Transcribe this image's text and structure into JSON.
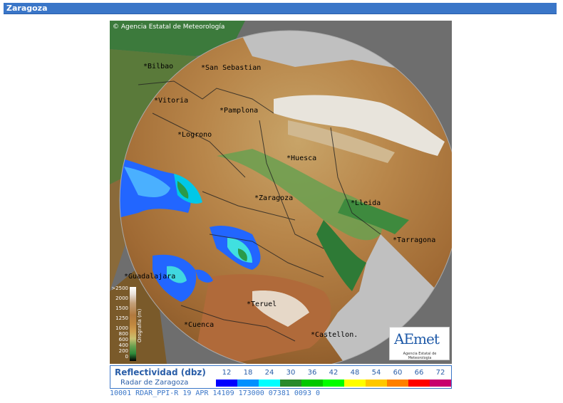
{
  "header": {
    "title": "Zaragoza"
  },
  "map": {
    "copyright": "Agencia Estatal de Meteorología",
    "cities": [
      {
        "name": "Bilbao"
      },
      {
        "name": "San Sebastian"
      },
      {
        "name": "Vitoria"
      },
      {
        "name": "Pamplona"
      },
      {
        "name": "Logrono"
      },
      {
        "name": "Huesca"
      },
      {
        "name": "Zaragoza"
      },
      {
        "name": "Lleida"
      },
      {
        "name": "Tarragona"
      },
      {
        "name": "Guadalajara"
      },
      {
        "name": "Teruel"
      },
      {
        "name": "Cuenca"
      },
      {
        "name": "Castellon."
      }
    ],
    "orography": {
      "title": "Orografía (m)",
      "levels": [
        ">2500",
        "2000",
        "1500",
        "1250",
        "1000",
        "800",
        "600",
        "400",
        "200",
        "0"
      ]
    },
    "logo": {
      "text": "AEmet",
      "subtitle": "Agencia Estatal de Meteorología"
    }
  },
  "legend": {
    "title": "Reflectividad (dbz)",
    "subtitle": "Radar de Zaragoza",
    "scale": [
      {
        "value": "12",
        "color": "#0000ff"
      },
      {
        "value": "18",
        "color": "#0090ff"
      },
      {
        "value": "24",
        "color": "#00ffff"
      },
      {
        "value": "30",
        "color": "#2a8a2a"
      },
      {
        "value": "36",
        "color": "#00c800"
      },
      {
        "value": "42",
        "color": "#00ff00"
      },
      {
        "value": "48",
        "color": "#ffff00"
      },
      {
        "value": "54",
        "color": "#ffc800"
      },
      {
        "value": "60",
        "color": "#ff8000"
      },
      {
        "value": "66",
        "color": "#ff0000"
      },
      {
        "value": "72",
        "color": "#c8006e"
      }
    ]
  },
  "status": {
    "text": "10001 RDAR_PPI-R   19 APR 14109 173000 07381 0093 0"
  },
  "colors": {
    "accent": "#3a76c8",
    "title_text": "#ffffff"
  }
}
